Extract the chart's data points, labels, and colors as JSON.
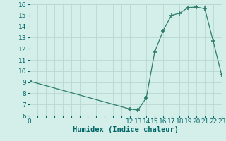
{
  "x": [
    0,
    12,
    13,
    14,
    15,
    16,
    17,
    18,
    19,
    20,
    21,
    22,
    23
  ],
  "y": [
    9.1,
    6.6,
    6.5,
    7.6,
    11.7,
    13.6,
    15.0,
    15.2,
    15.7,
    15.75,
    15.6,
    12.7,
    9.7
  ],
  "line_color": "#2d7d6e",
  "marker": "+",
  "marker_size": 4,
  "marker_lw": 1.2,
  "bg_color": "#d4eeea",
  "grid_color": "#b8d8d2",
  "xlabel": "Humidex (Indice chaleur)",
  "xlabel_color": "#006666",
  "xlabel_fontsize": 7.5,
  "tick_color": "#006666",
  "tick_fontsize": 6.5,
  "xlim": [
    0,
    23
  ],
  "ylim": [
    6,
    16
  ],
  "yticks": [
    6,
    7,
    8,
    9,
    10,
    11,
    12,
    13,
    14,
    15,
    16
  ],
  "xticks_shown": [
    0,
    12,
    13,
    14,
    15,
    16,
    17,
    18,
    19,
    20,
    21,
    22,
    23
  ]
}
